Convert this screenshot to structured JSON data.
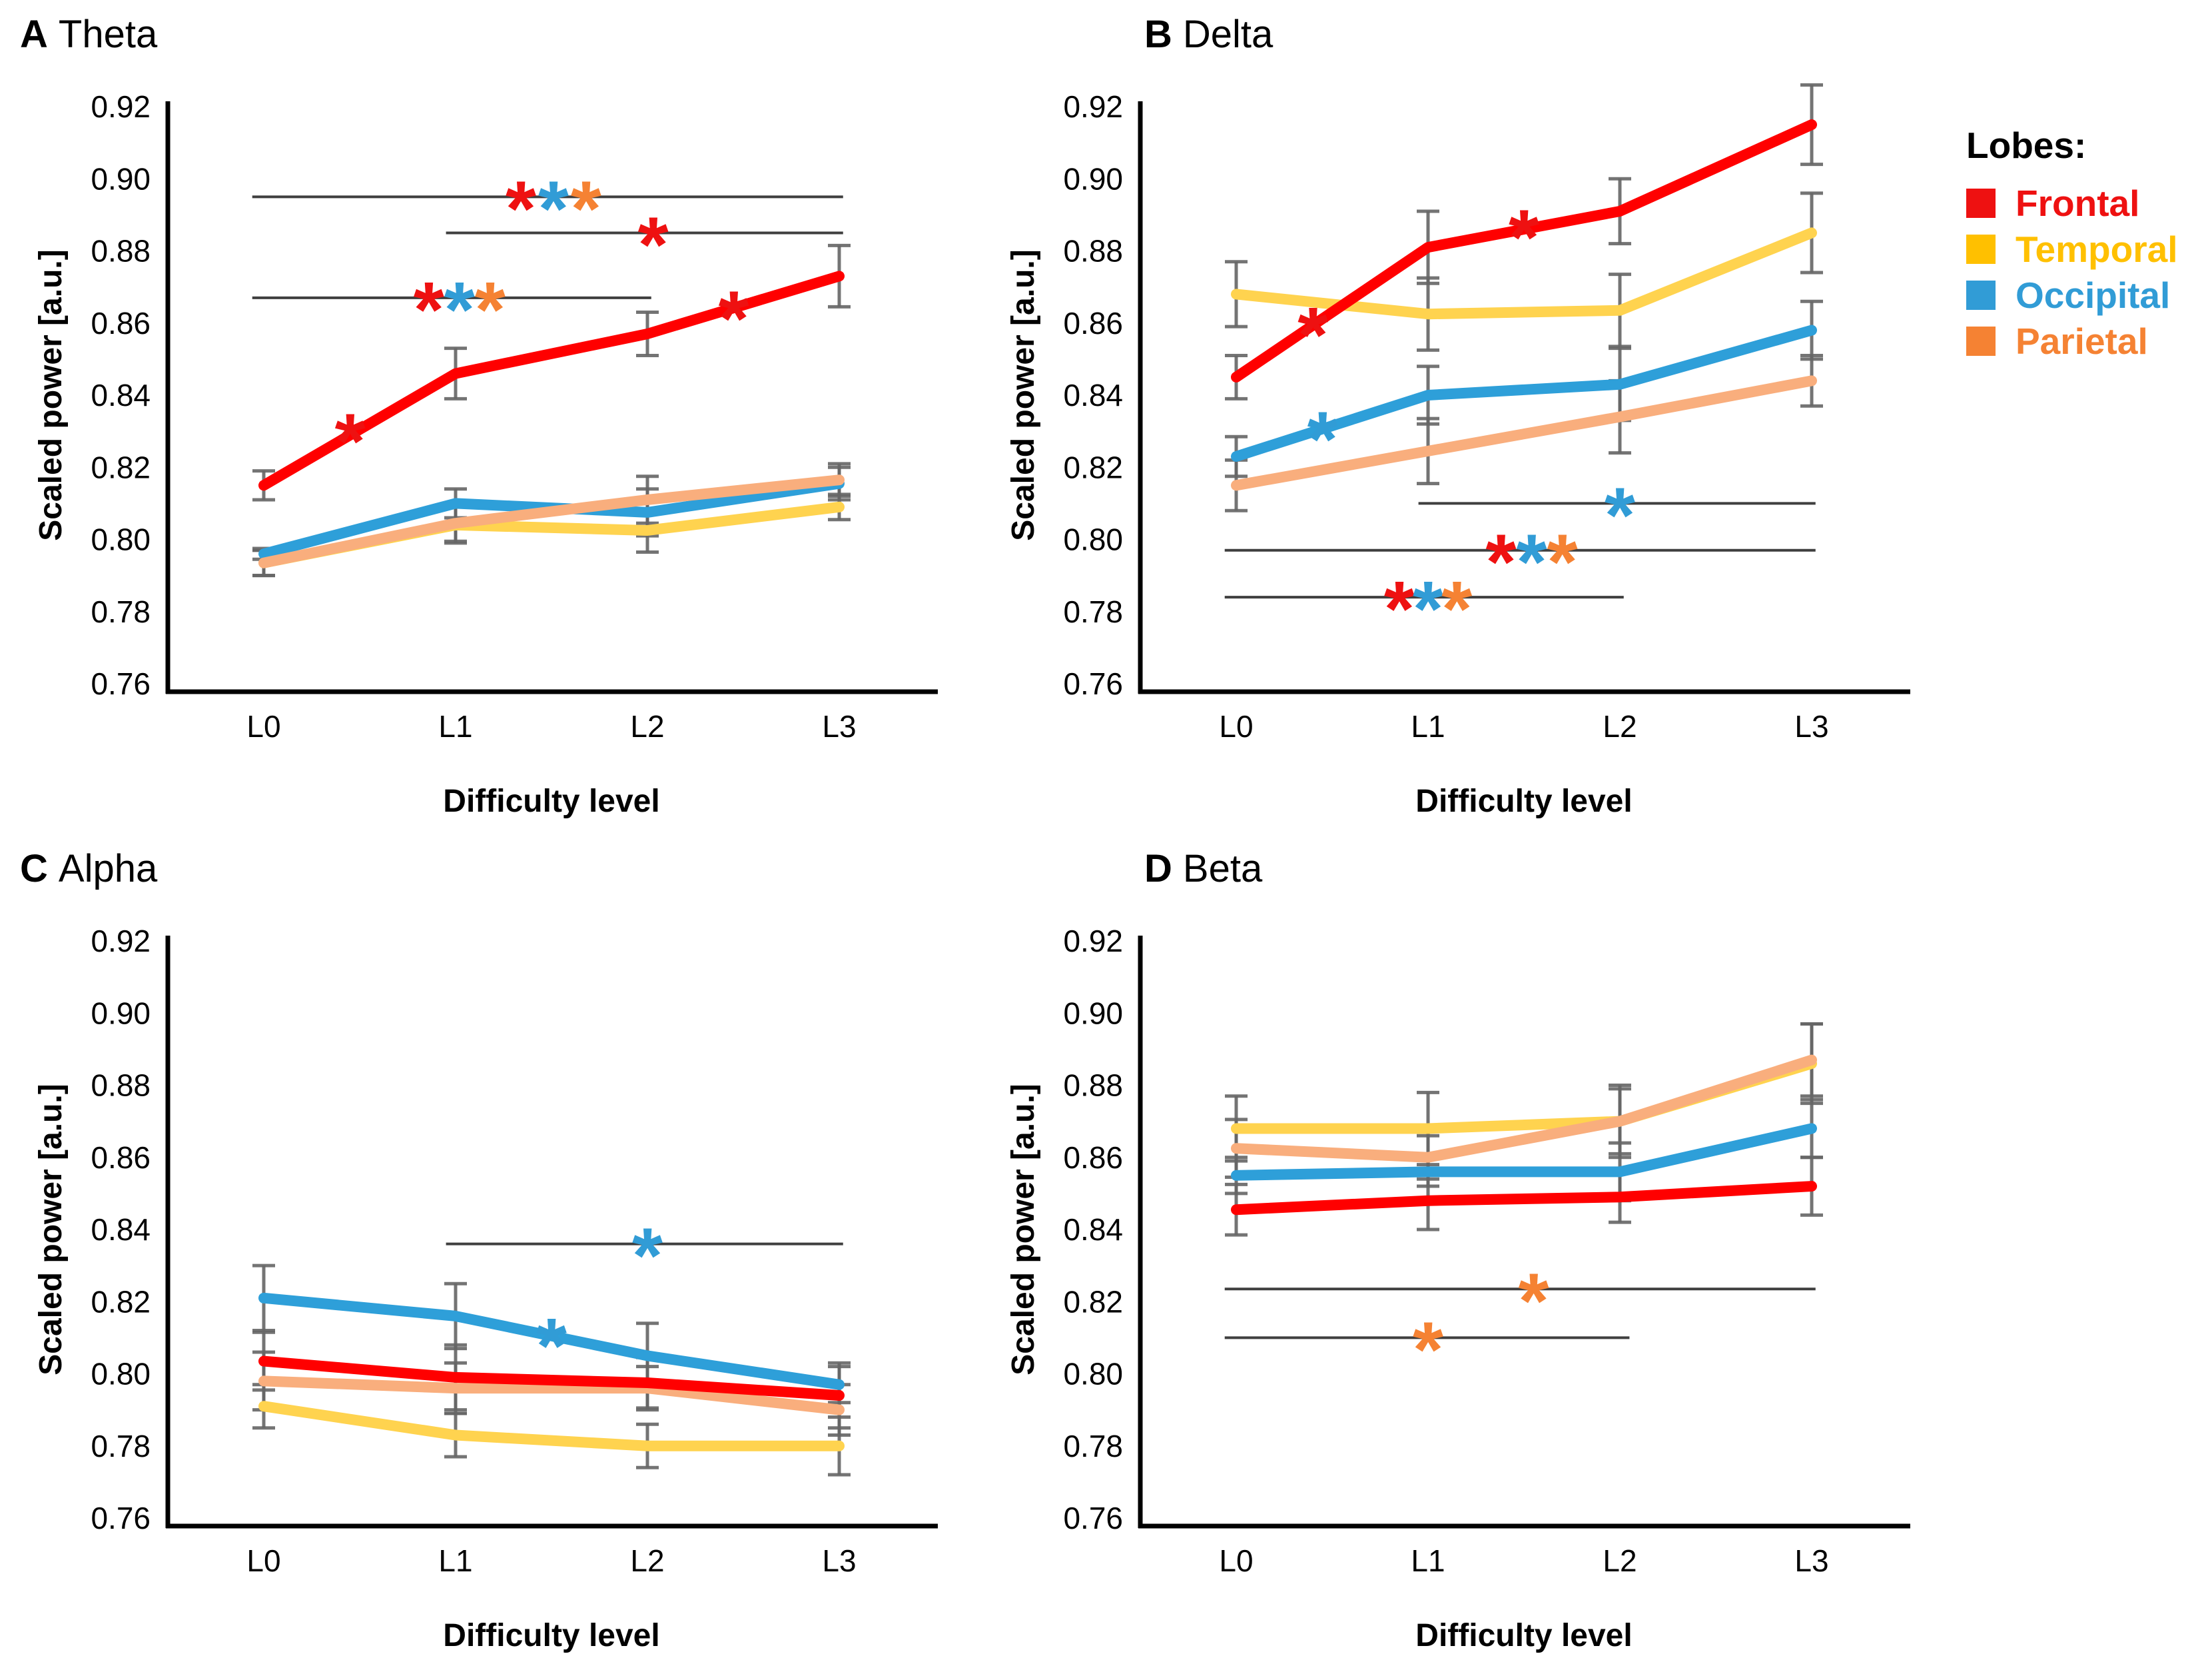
{
  "legend": {
    "title": "Lobes:",
    "items": [
      {
        "label": "Frontal",
        "lobe": "frontal"
      },
      {
        "label": "Temporal",
        "lobe": "temporal"
      },
      {
        "label": "Occipital",
        "lobe": "occipital"
      },
      {
        "label": "Parietal",
        "lobe": "parietal"
      }
    ]
  },
  "colors": {
    "frontal": {
      "line": "#FF0000",
      "accent": "#EE1111"
    },
    "temporal": {
      "line": "#FFD34F",
      "accent": "#FFC000"
    },
    "occipital": {
      "line": "#2E9FD9",
      "accent": "#319CD6"
    },
    "parietal": {
      "line": "#F9AE7D",
      "accent": "#F58233"
    },
    "error_bar": "#666666",
    "sig_line": "#3F3F3F",
    "axis": "#000000",
    "text": "#000000"
  },
  "chart_data": [
    {
      "type": "line",
      "letter": "A",
      "title": "Theta",
      "categories": [
        "L0",
        "L1",
        "L2",
        "L3"
      ],
      "xlabel": "Difficulty level",
      "ylabel": "Scaled power [a.u.]",
      "ylim": [
        0.76,
        0.92
      ],
      "yticks": [
        "0.76",
        "0.78",
        "0.80",
        "0.82",
        "0.84",
        "0.86",
        "0.88",
        "0.90",
        "0.92"
      ],
      "grid": false,
      "series": [
        {
          "name": "Temporal",
          "lobe": "temporal",
          "values": [
            0.7935,
            0.804,
            0.8025,
            0.809
          ],
          "errors": [
            0.0035,
            0.005,
            0.006,
            0.0035
          ]
        },
        {
          "name": "Occipital",
          "lobe": "occipital",
          "values": [
            0.796,
            0.81,
            0.8075,
            0.8155
          ],
          "errors": [
            0.0015,
            0.004,
            0.0065,
            0.0045
          ]
        },
        {
          "name": "Parietal",
          "lobe": "parietal",
          "values": [
            0.7935,
            0.8045,
            0.811,
            0.8165
          ],
          "errors": [
            0.0035,
            0.005,
            0.0065,
            0.0045
          ]
        },
        {
          "name": "Frontal",
          "lobe": "frontal",
          "values": [
            0.815,
            0.846,
            0.857,
            0.873
          ],
          "errors": [
            0.004,
            0.007,
            0.006,
            0.0085
          ]
        }
      ],
      "point_markers": [
        {
          "lobe": "frontal",
          "x": 0.45,
          "y": 0.8305
        },
        {
          "lobe": "frontal",
          "x": 2.45,
          "y": 0.8645
        }
      ],
      "sig_lines": [
        {
          "y": 0.895,
          "x1": -0.06,
          "x2": 3.02,
          "stars": [
            {
              "lobe": "frontal",
              "x": 1.34
            },
            {
              "lobe": "occipital",
              "x": 1.51
            },
            {
              "lobe": "parietal",
              "x": 1.68
            }
          ]
        },
        {
          "y": 0.885,
          "x1": 0.95,
          "x2": 3.02,
          "stars": [
            {
              "lobe": "frontal",
              "x": 2.03
            }
          ]
        },
        {
          "y": 0.867,
          "x1": -0.06,
          "x2": 2.02,
          "stars": [
            {
              "lobe": "frontal",
              "x": 0.86
            },
            {
              "lobe": "occipital",
              "x": 1.02
            },
            {
              "lobe": "parietal",
              "x": 1.18
            }
          ]
        }
      ]
    },
    {
      "type": "line",
      "letter": "B",
      "title": "Delta",
      "categories": [
        "L0",
        "L1",
        "L2",
        "L3"
      ],
      "xlabel": "Difficulty level",
      "ylabel": "Scaled power [a.u.]",
      "ylim": [
        0.76,
        0.92
      ],
      "yticks": [
        "0.76",
        "0.78",
        "0.80",
        "0.82",
        "0.84",
        "0.86",
        "0.88",
        "0.90",
        "0.92"
      ],
      "grid": false,
      "series": [
        {
          "name": "Temporal",
          "lobe": "temporal",
          "values": [
            0.868,
            0.8625,
            0.8635,
            0.885
          ],
          "errors": [
            0.009,
            0.01,
            0.01,
            0.011
          ]
        },
        {
          "name": "Occipital",
          "lobe": "occipital",
          "values": [
            0.823,
            0.84,
            0.843,
            0.858
          ],
          "errors": [
            0.0055,
            0.008,
            0.01,
            0.008
          ]
        },
        {
          "name": "Parietal",
          "lobe": "parietal",
          "values": [
            0.815,
            0.8245,
            0.834,
            0.844
          ],
          "errors": [
            0.007,
            0.009,
            0.01,
            0.007
          ]
        },
        {
          "name": "Frontal",
          "lobe": "frontal",
          "values": [
            0.845,
            0.881,
            0.891,
            0.915
          ],
          "errors": [
            0.006,
            0.01,
            0.009,
            0.011
          ]
        }
      ],
      "point_markers": [
        {
          "lobe": "frontal",
          "x": 0.4,
          "y": 0.86
        },
        {
          "lobe": "occipital",
          "x": 0.45,
          "y": 0.831
        },
        {
          "lobe": "frontal",
          "x": 1.5,
          "y": 0.887
        }
      ],
      "sig_lines": [
        {
          "y": 0.81,
          "x1": 0.95,
          "x2": 3.02,
          "stars": [
            {
              "lobe": "occipital",
              "x": 2.0
            }
          ]
        },
        {
          "y": 0.797,
          "x1": -0.06,
          "x2": 3.02,
          "stars": [
            {
              "lobe": "frontal",
              "x": 1.38
            },
            {
              "lobe": "occipital",
              "x": 1.54
            },
            {
              "lobe": "parietal",
              "x": 1.7
            }
          ]
        },
        {
          "y": 0.784,
          "x1": -0.06,
          "x2": 2.02,
          "stars": [
            {
              "lobe": "frontal",
              "x": 0.85
            },
            {
              "lobe": "occipital",
              "x": 1.0
            },
            {
              "lobe": "parietal",
              "x": 1.15
            }
          ]
        }
      ]
    },
    {
      "type": "line",
      "letter": "C",
      "title": "Alpha",
      "categories": [
        "L0",
        "L1",
        "L2",
        "L3"
      ],
      "xlabel": "Difficulty level",
      "ylabel": "Scaled power [a.u.]",
      "ylim": [
        0.76,
        0.92
      ],
      "yticks": [
        "0.76",
        "0.78",
        "0.80",
        "0.82",
        "0.84",
        "0.86",
        "0.88",
        "0.90",
        "0.92"
      ],
      "grid": false,
      "series": [
        {
          "name": "Temporal",
          "lobe": "temporal",
          "values": [
            0.791,
            0.783,
            0.78,
            0.78
          ],
          "errors": [
            0.006,
            0.006,
            0.006,
            0.008
          ]
        },
        {
          "name": "Parietal",
          "lobe": "parietal",
          "values": [
            0.798,
            0.796,
            0.796,
            0.79
          ],
          "errors": [
            0.008,
            0.007,
            0.006,
            0.007
          ]
        },
        {
          "name": "Frontal",
          "lobe": "frontal",
          "values": [
            0.8035,
            0.799,
            0.7975,
            0.794
          ],
          "errors": [
            0.008,
            0.009,
            0.007,
            0.009
          ]
        },
        {
          "name": "Occipital",
          "lobe": "occipital",
          "values": [
            0.821,
            0.816,
            0.805,
            0.797
          ],
          "errors": [
            0.009,
            0.009,
            0.009,
            0.005
          ]
        }
      ],
      "point_markers": [
        {
          "lobe": "occipital",
          "x": 1.5,
          "y": 0.811
        }
      ],
      "sig_lines": [
        {
          "y": 0.836,
          "x1": 0.95,
          "x2": 3.02,
          "stars": [
            {
              "lobe": "occipital",
              "x": 2.0
            }
          ]
        }
      ]
    },
    {
      "type": "line",
      "letter": "D",
      "title": "Beta",
      "categories": [
        "L0",
        "L1",
        "L2",
        "L3"
      ],
      "xlabel": "Difficulty level",
      "ylabel": "Scaled power [a.u.]",
      "ylim": [
        0.76,
        0.92
      ],
      "yticks": [
        "0.76",
        "0.78",
        "0.80",
        "0.82",
        "0.84",
        "0.86",
        "0.88",
        "0.90",
        "0.92"
      ],
      "grid": false,
      "series": [
        {
          "name": "Temporal",
          "lobe": "temporal",
          "values": [
            0.868,
            0.868,
            0.87,
            0.886
          ],
          "errors": [
            0.009,
            0.01,
            0.01,
            0.011
          ]
        },
        {
          "name": "Occipital",
          "lobe": "occipital",
          "values": [
            0.855,
            0.856,
            0.856,
            0.868
          ],
          "errors": [
            0.005,
            0.004,
            0.008,
            0.008
          ]
        },
        {
          "name": "Parietal",
          "lobe": "parietal",
          "values": [
            0.8625,
            0.86,
            0.87,
            0.887
          ],
          "errors": [
            0.008,
            0.006,
            0.009,
            0.01
          ]
        },
        {
          "name": "Frontal",
          "lobe": "frontal",
          "values": [
            0.8455,
            0.848,
            0.849,
            0.852
          ],
          "errors": [
            0.007,
            0.008,
            0.007,
            0.008
          ]
        }
      ],
      "point_markers": [],
      "sig_lines": [
        {
          "y": 0.8235,
          "x1": -0.06,
          "x2": 3.02,
          "stars": [
            {
              "lobe": "parietal",
              "x": 1.55
            }
          ]
        },
        {
          "y": 0.81,
          "x1": -0.06,
          "x2": 2.05,
          "stars": [
            {
              "lobe": "parietal",
              "x": 1.0
            }
          ]
        }
      ]
    }
  ]
}
